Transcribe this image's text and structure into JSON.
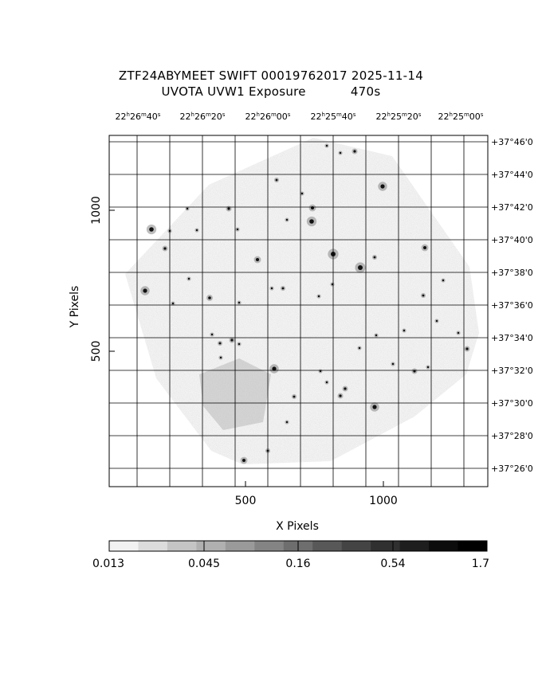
{
  "title_line1": "ZTF24ABYMEET SWIFT 00019762017 2025-11-14",
  "title_line2_left": "UVOTA UVW1 Exposure",
  "title_line2_right": "470s",
  "x_axis_label": "X Pixels",
  "y_axis_label": "Y Pixels",
  "x_ticks": [
    "500",
    "1000"
  ],
  "y_ticks": [
    "500",
    "1000"
  ],
  "ra_labels": [
    {
      "h": "22",
      "m": "26",
      "s": "40"
    },
    {
      "h": "22",
      "m": "26",
      "s": "20"
    },
    {
      "h": "22",
      "m": "26",
      "s": "00"
    },
    {
      "h": "22",
      "m": "25",
      "s": "40"
    },
    {
      "h": "22",
      "m": "25",
      "s": "20"
    },
    {
      "h": "22",
      "m": "25",
      "s": "00"
    }
  ],
  "dec_labels": [
    "+37°46'0",
    "+37°44'0",
    "+37°42'0",
    "+37°40'0",
    "+37°38'0",
    "+37°36'0",
    "+37°34'0",
    "+37°32'0",
    "+37°30'0",
    "+37°28'0",
    "+37°26'0"
  ],
  "colorbar": {
    "ticks": [
      "0.013",
      "0.045",
      "0.16",
      "0.54",
      "1.7"
    ],
    "colors": [
      "#f2f2f2",
      "#dcdcdc",
      "#c4c4c4",
      "#b0b0b0",
      "#9a9a9a",
      "#848484",
      "#6e6e6e",
      "#585858",
      "#444444",
      "#303030",
      "#1e1e1e",
      "#0c0c0c",
      "#000000"
    ]
  },
  "image_colors": {
    "background": "#ffffff",
    "field": "#bdbdbd",
    "source": "#111111"
  }
}
